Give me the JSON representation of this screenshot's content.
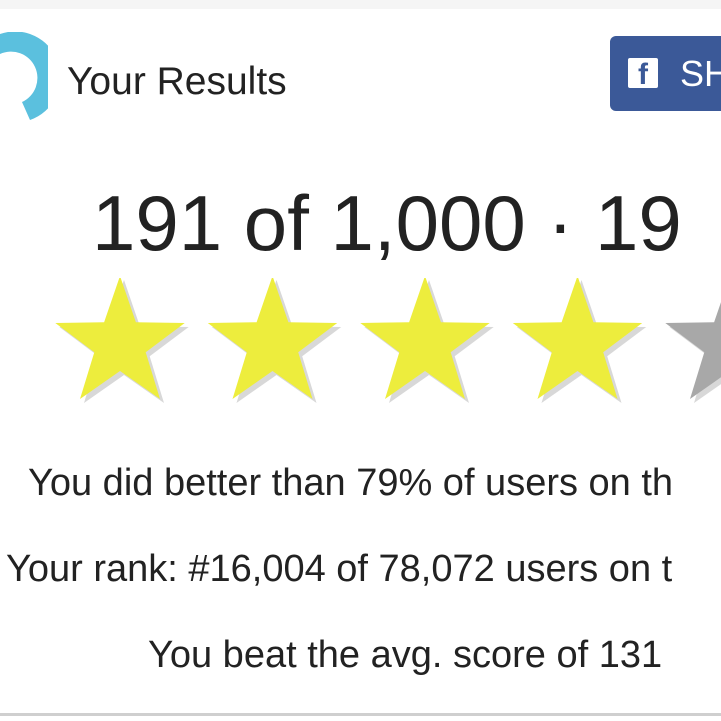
{
  "header": {
    "title": "Your Results",
    "share_label": "SH",
    "share_icon": "facebook-icon"
  },
  "result": {
    "score_text": "191 of 1,000  ·  19"
  },
  "rating": {
    "filled": 4,
    "total": 5,
    "fill_color": "#eded3d",
    "empty_color": "#a8a8a8"
  },
  "stats": {
    "better_than": "You did better than 79% of users on th",
    "rank": "Your rank: #16,004 of 78,072 users on t",
    "avg": "You beat the avg. score of 131"
  },
  "colors": {
    "logo": "#5bc0de",
    "facebook": "#3b5998"
  }
}
